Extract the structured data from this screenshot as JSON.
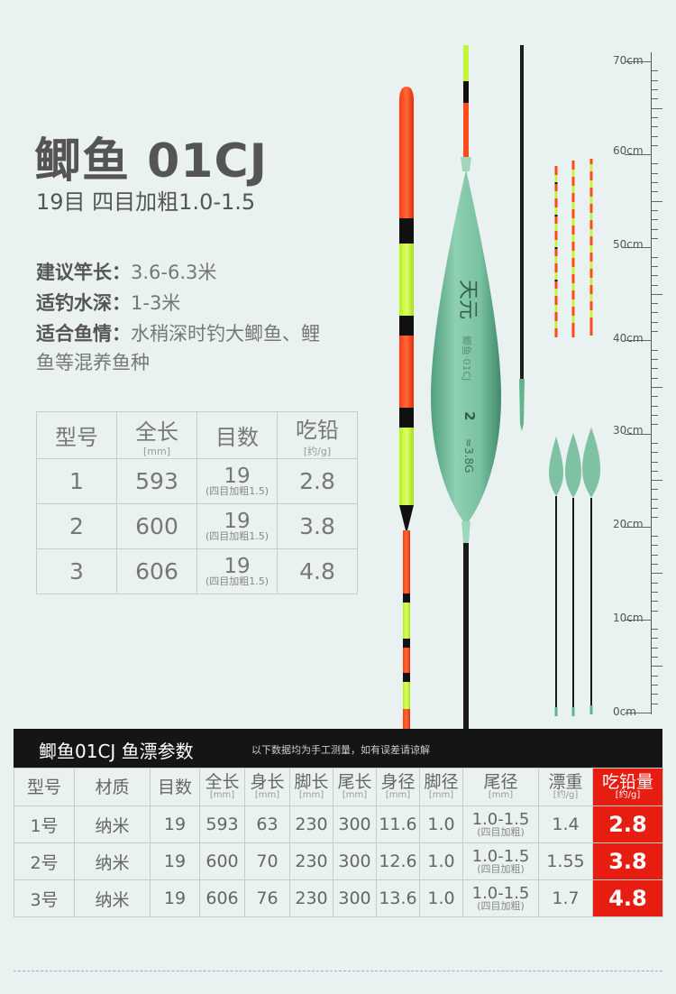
{
  "title": "鲫鱼 01CJ",
  "subtitle": "19目  四目加粗1.0-1.5",
  "specs": [
    {
      "label": "建议竿长：",
      "value": "3.6-6.3米"
    },
    {
      "label": "适钓水深：",
      "value": "1-3米"
    },
    {
      "label": "适合鱼情：",
      "value": "水稍深时钓大鲫鱼、鲤"
    },
    {
      "label": "",
      "value": "鱼等混养鱼种"
    }
  ],
  "small_table": {
    "headers": [
      {
        "label": "型号",
        "unit": ""
      },
      {
        "label": "全长",
        "unit": "[mm]"
      },
      {
        "label": "目数",
        "unit": ""
      },
      {
        "label": "吃铅",
        "unit": "[约/g]"
      }
    ],
    "rows": [
      {
        "model": "1",
        "length": "593",
        "mesh": "19",
        "mesh_note": "(四目加粗1.5)",
        "lead": "2.8"
      },
      {
        "model": "2",
        "length": "600",
        "mesh": "19",
        "mesh_note": "(四目加粗1.5)",
        "lead": "3.8"
      },
      {
        "model": "3",
        "length": "606",
        "mesh": "19",
        "mesh_note": "(四目加粗1.5)",
        "lead": "4.8"
      }
    ]
  },
  "ruler": [
    "70cm",
    "60cm",
    "50cm",
    "40cm",
    "30cm",
    "20cm",
    "10cm",
    "0cm"
  ],
  "float_text": {
    "brand": "天元",
    "model_mark": "鲫鱼·01CJ",
    "size": "2",
    "weight": "≈3.8G"
  },
  "bottom": {
    "title": "鲫鱼01CJ 鱼漂参数",
    "note": "以下数据均为手工测量，如有误差请谅解",
    "headers": [
      {
        "label": "型号",
        "unit": ""
      },
      {
        "label": "材质",
        "unit": ""
      },
      {
        "label": "目数",
        "unit": ""
      },
      {
        "label": "全长",
        "unit": "[mm]"
      },
      {
        "label": "身长",
        "unit": "[mm]"
      },
      {
        "label": "脚长",
        "unit": "[mm]"
      },
      {
        "label": "尾长",
        "unit": "[mm]"
      },
      {
        "label": "身径",
        "unit": "[mm]"
      },
      {
        "label": "脚径",
        "unit": "[mm]"
      },
      {
        "label": "尾径",
        "unit": "[mm]"
      },
      {
        "label": "漂重",
        "unit": "[约/g]"
      },
      {
        "label": "吃铅量",
        "unit": "[约/g]"
      }
    ],
    "rows": [
      {
        "model": "1号",
        "material": "纳米",
        "mesh": "19",
        "total": "593",
        "body": "63",
        "foot": "230",
        "tail": "300",
        "body_d": "11.6",
        "foot_d": "1.0",
        "tail_d": "1.0-1.5",
        "tail_d_note": "(四目加粗)",
        "weight": "1.4",
        "lead": "2.8"
      },
      {
        "model": "2号",
        "material": "纳米",
        "mesh": "19",
        "total": "600",
        "body": "70",
        "foot": "230",
        "tail": "300",
        "body_d": "12.6",
        "foot_d": "1.0",
        "tail_d": "1.0-1.5",
        "tail_d_note": "(四目加粗)",
        "weight": "1.55",
        "lead": "3.8"
      },
      {
        "model": "3号",
        "material": "纳米",
        "mesh": "19",
        "total": "606",
        "body": "76",
        "foot": "230",
        "tail": "300",
        "body_d": "13.6",
        "foot_d": "1.0",
        "tail_d": "1.0-1.5",
        "tail_d_note": "(四目加粗)",
        "weight": "1.7",
        "lead": "4.8"
      }
    ]
  },
  "colors": {
    "accent_red": "#e81d12",
    "float_green": "#7fc1a3",
    "tip_orange": "#ff4a1c",
    "tip_yellow": "#c8f53a"
  }
}
